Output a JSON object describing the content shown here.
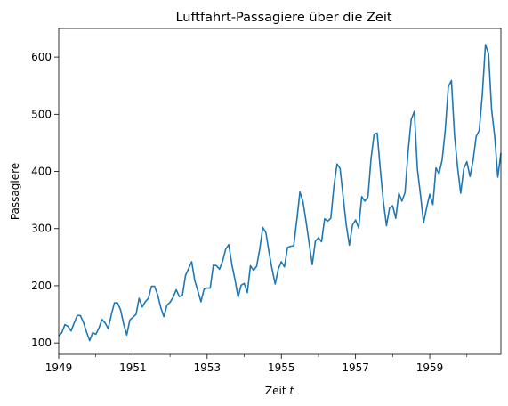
{
  "chart_data": {
    "type": "line",
    "title": "Luftfahrt-Passagiere über die Zeit",
    "xlabel": "Zeit",
    "xlabel_italic_var": "t",
    "ylabel": "Passagiere",
    "x_start": 1949,
    "x_step": 0.0833333,
    "xlim": [
      1949,
      1960.9166667
    ],
    "ylim": [
      80,
      650
    ],
    "x_major_ticks": [
      1949,
      1951,
      1953,
      1955,
      1957,
      1959
    ],
    "x_minor_ticks": [
      1950,
      1952,
      1954,
      1956,
      1958,
      1960
    ],
    "y_ticks": [
      100,
      200,
      300,
      400,
      500,
      600
    ],
    "grid": false,
    "line_color": "#1f77b4",
    "series": [
      {
        "values": [
          112,
          118,
          132,
          129,
          121,
          135,
          148,
          148,
          136,
          119,
          104,
          118,
          115,
          126,
          141,
          135,
          125,
          149,
          170,
          170,
          158,
          133,
          114,
          140,
          145,
          150,
          178,
          163,
          172,
          178,
          199,
          199,
          184,
          162,
          146,
          166,
          171,
          180,
          193,
          181,
          183,
          218,
          230,
          242,
          209,
          191,
          172,
          194,
          196,
          196,
          236,
          235,
          229,
          243,
          264,
          272,
          237,
          211,
          180,
          201,
          204,
          188,
          235,
          227,
          234,
          264,
          302,
          293,
          259,
          229,
          203,
          229,
          242,
          233,
          267,
          269,
          270,
          315,
          364,
          347,
          312,
          274,
          237,
          278,
          284,
          277,
          317,
          313,
          318,
          374,
          413,
          405,
          355,
          306,
          271,
          306,
          315,
          301,
          356,
          348,
          355,
          422,
          465,
          467,
          404,
          347,
          305,
          336,
          340,
          318,
          362,
          348,
          363,
          435,
          491,
          505,
          404,
          359,
          310,
          337,
          360,
          342,
          406,
          396,
          420,
          472,
          548,
          559,
          463,
          407,
          362,
          405,
          417,
          391,
          419,
          461,
          472,
          535,
          622,
          606,
          508,
          461,
          390,
          432
        ]
      }
    ]
  }
}
